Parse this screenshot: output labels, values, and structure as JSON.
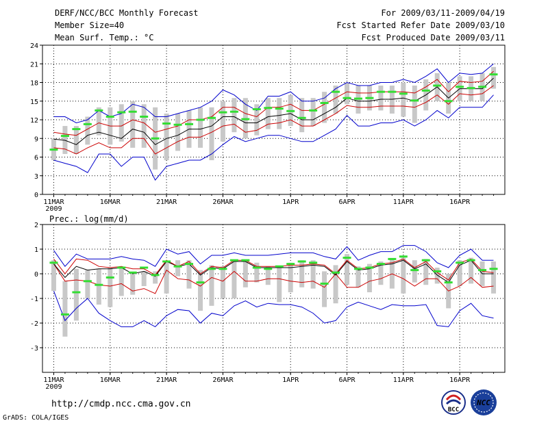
{
  "header": {
    "title": "DERF/NCC/BCC Monthly Forecast",
    "member_size": "Member Size=40",
    "variable": "Mean Surf. Temp.: °C",
    "period": "For 2009/03/11-2009/04/19",
    "refer_date": "Fcst Started Refer Date 2009/03/10",
    "produced_date": "Fcst Produced Date 2009/03/11"
  },
  "footer": {
    "url": "http://cmdp.ncc.cma.gov.cn",
    "grads": "GrADS: COLA/IGES",
    "logo_bcc": "BCC",
    "logo_ncc": "NCC"
  },
  "x_axis": {
    "ticks": [
      {
        "day": 1,
        "label": "11MAR",
        "sub": "2009"
      },
      {
        "day": 6,
        "label": "16MAR",
        "sub": ""
      },
      {
        "day": 11,
        "label": "21MAR",
        "sub": ""
      },
      {
        "day": 16,
        "label": "26MAR",
        "sub": ""
      },
      {
        "day": 22,
        "label": "1APR",
        "sub": ""
      },
      {
        "day": 27,
        "label": "6APR",
        "sub": ""
      },
      {
        "day": 32,
        "label": "11APR",
        "sub": ""
      },
      {
        "day": 37,
        "label": "16APR",
        "sub": ""
      }
    ]
  },
  "colors": {
    "max_min": "#0000cc",
    "spread": "#cc0000",
    "mean": "#000000",
    "box": "#c8c8c8",
    "obs": "#33dd33"
  },
  "chart_data": [
    {
      "type": "line",
      "title": "Mean Surf. Temp.: °C",
      "x": [
        1,
        2,
        3,
        4,
        5,
        6,
        7,
        8,
        9,
        10,
        11,
        12,
        13,
        14,
        15,
        16,
        17,
        18,
        19,
        20,
        21,
        22,
        23,
        24,
        25,
        26,
        27,
        28,
        29,
        30,
        31,
        32,
        33,
        34,
        35,
        36,
        37,
        38,
        39,
        40
      ],
      "xlim": [
        0,
        41
      ],
      "ylim": [
        0,
        24
      ],
      "yticks": [
        0,
        3,
        6,
        9,
        12,
        15,
        18,
        21,
        24
      ],
      "series": [
        {
          "name": "max",
          "values": [
            12.5,
            12.5,
            11.5,
            12,
            13.5,
            12.5,
            13,
            14.5,
            14,
            12.5,
            12.5,
            13,
            13.5,
            14,
            15,
            16.8,
            16,
            14.5,
            13.5,
            15.8,
            15.8,
            16.5,
            15,
            15,
            15.5,
            17,
            18,
            17.5,
            17.5,
            18,
            18,
            18.5,
            18,
            19,
            20.2,
            18,
            19.5,
            19.3,
            19.5,
            21
          ]
        },
        {
          "name": "upper",
          "values": [
            10,
            9.7,
            9.5,
            10.5,
            11.5,
            11,
            11,
            12,
            11.5,
            10,
            10.5,
            11,
            12,
            12,
            12.5,
            14,
            14,
            13,
            12.5,
            14,
            14,
            14.5,
            13.5,
            13.5,
            14.5,
            15.5,
            16.5,
            16.3,
            16.3,
            16.5,
            16.5,
            16.5,
            16.3,
            17.3,
            18.5,
            16.5,
            18.2,
            18,
            18.2,
            19.8
          ]
        },
        {
          "name": "mean",
          "values": [
            8.9,
            8.7,
            8,
            9.5,
            10,
            9.5,
            9,
            10.5,
            10,
            8,
            9,
            9.5,
            10.5,
            10.5,
            11,
            12.5,
            12.5,
            11.5,
            11.5,
            12.5,
            12.7,
            13,
            12,
            12,
            13,
            14,
            15.5,
            15,
            15,
            15.3,
            15.3,
            15.5,
            15,
            16,
            17.3,
            15.5,
            17,
            17,
            17,
            18.7
          ]
        },
        {
          "name": "lower",
          "values": [
            7.5,
            7.3,
            6.5,
            7.5,
            8.3,
            7.5,
            7.5,
            9,
            9,
            6.5,
            7.5,
            8.5,
            9.2,
            9.2,
            10,
            11,
            11.3,
            10,
            10.3,
            11.3,
            11.5,
            12,
            11,
            11,
            12,
            13,
            14.3,
            14,
            14,
            14.2,
            14.2,
            14.2,
            14,
            14.8,
            16,
            14.5,
            16.2,
            16,
            16.2,
            17.5
          ]
        },
        {
          "name": "min",
          "values": [
            5.5,
            5,
            4.5,
            3.5,
            6.5,
            6.5,
            4.5,
            6,
            6,
            2.3,
            4.5,
            5,
            5.5,
            5.5,
            6.5,
            8,
            9.3,
            8.5,
            9,
            9.5,
            9.5,
            9,
            8.5,
            8.5,
            9.5,
            10.5,
            12.7,
            11,
            11,
            11.5,
            11.5,
            12,
            11,
            12,
            13.5,
            12.3,
            14,
            14,
            14,
            16
          ]
        }
      ],
      "boxes": [
        [
          5.5,
          9
        ],
        [
          6.5,
          11
        ],
        [
          6.5,
          11
        ],
        [
          8,
          12.5
        ],
        [
          9.5,
          14
        ],
        [
          8,
          14
        ],
        [
          8.5,
          14.5
        ],
        [
          7.5,
          15
        ],
        [
          7.5,
          14.5
        ],
        [
          4,
          14
        ],
        [
          5.5,
          13
        ],
        [
          7,
          13
        ],
        [
          7.5,
          13.5
        ],
        [
          7.5,
          14
        ],
        [
          5.5,
          14
        ],
        [
          8.5,
          15
        ],
        [
          10,
          15.5
        ],
        [
          9,
          15.5
        ],
        [
          9.5,
          14.5
        ],
        [
          10.5,
          15.5
        ],
        [
          10.5,
          15.5
        ],
        [
          11,
          16
        ],
        [
          10,
          15.5
        ],
        [
          11,
          15.5
        ],
        [
          11.5,
          16.5
        ],
        [
          13,
          17.5
        ],
        [
          14.5,
          18
        ],
        [
          13,
          17.5
        ],
        [
          13.5,
          17.5
        ],
        [
          13.5,
          17.5
        ],
        [
          13,
          17.5
        ],
        [
          12.5,
          18
        ],
        [
          11.5,
          17.5
        ],
        [
          13.5,
          18.5
        ],
        [
          15,
          19.5
        ],
        [
          13,
          18
        ],
        [
          15,
          19
        ],
        [
          15,
          19
        ],
        [
          15,
          19.5
        ],
        [
          17,
          20.5
        ]
      ],
      "observed": [
        7.2,
        9.4,
        10.5,
        11.3,
        13.5,
        12.5,
        13.2,
        13.3,
        12.5,
        9,
        11.4,
        11.2,
        11.3,
        12,
        12.3,
        13.2,
        13.3,
        12.1,
        13.7,
        13.9,
        13.8,
        13.4,
        12.3,
        13.5,
        14.7,
        16.5,
        15.5,
        15.4,
        15.5,
        16.5,
        16.5,
        16.2,
        15.1,
        16.7,
        17.5,
        15,
        17.3,
        17.1,
        17.3,
        19.3
      ]
    },
    {
      "type": "line",
      "title": "Prec.: log(mm/d)",
      "x": [
        1,
        2,
        3,
        4,
        5,
        6,
        7,
        8,
        9,
        10,
        11,
        12,
        13,
        14,
        15,
        16,
        17,
        18,
        19,
        20,
        21,
        22,
        23,
        24,
        25,
        26,
        27,
        28,
        29,
        30,
        31,
        32,
        33,
        34,
        35,
        36,
        37,
        38,
        39,
        40
      ],
      "xlim": [
        0,
        41
      ],
      "ylim": [
        -4,
        2
      ],
      "yticks": [
        -3,
        -2,
        -1,
        0,
        1,
        2
      ],
      "series": [
        {
          "name": "max",
          "values": [
            -0.7,
            -1.9,
            -1.4,
            -1.0,
            -1.6,
            -1.9,
            -2.15,
            -2.15,
            -1.9,
            -2.15,
            -1.7,
            -1.45,
            -1.5,
            -2.0,
            -1.6,
            -1.7,
            -1.3,
            -1.1,
            -1.35,
            -1.2,
            -1.25,
            -1.25,
            -1.35,
            -1.6,
            -2.0,
            -1.9,
            -1.35,
            -1.15,
            -1.3,
            -1.45,
            -1.25,
            -1.3,
            -1.3,
            -1.25,
            -2.1,
            -2.15,
            -1.5,
            -1.2,
            -1.7,
            -1.8
          ]
        },
        {
          "name": "upper",
          "values": [
            0.4,
            -0.3,
            -0.25,
            -0.3,
            -0.45,
            -0.5,
            -0.4,
            -0.7,
            -0.6,
            -0.8,
            0.15,
            -0.2,
            -0.25,
            -0.5,
            -0.15,
            -0.3,
            0.1,
            -0.3,
            -0.3,
            -0.2,
            -0.2,
            -0.3,
            -0.35,
            -0.3,
            -0.55,
            0.0,
            -0.55,
            -0.55,
            -0.3,
            -0.2,
            0.0,
            -0.2,
            -0.5,
            -0.2,
            -0.2,
            -0.7,
            -0.5,
            -0.15,
            -0.55,
            -0.5
          ]
        },
        {
          "name": "mean",
          "values": [
            0.4,
            -0.15,
            0.3,
            0.15,
            0.2,
            0.2,
            0.25,
            0.0,
            0.1,
            -0.1,
            0.5,
            0.3,
            0.4,
            -0.05,
            0.25,
            0.2,
            0.5,
            0.5,
            0.25,
            0.25,
            0.25,
            0.25,
            0.3,
            0.35,
            0.3,
            -0.05,
            0.5,
            0.15,
            0.2,
            0.35,
            0.4,
            0.55,
            0.2,
            0.4,
            -0.05,
            -0.35,
            0.35,
            0.55,
            0.0,
            0.0
          ]
        },
        {
          "name": "lower",
          "values": [
            0.6,
            0.0,
            0.6,
            0.55,
            0.3,
            0.25,
            0.3,
            0.2,
            0.2,
            -0.05,
            0.55,
            0.3,
            0.5,
            0.0,
            0.3,
            0.25,
            0.55,
            0.55,
            0.3,
            0.3,
            0.3,
            0.35,
            0.35,
            0.4,
            0.35,
            0.0,
            0.55,
            0.2,
            0.25,
            0.4,
            0.45,
            0.6,
            0.25,
            0.5,
            0.05,
            -0.25,
            0.45,
            0.6,
            0.1,
            0.05
          ]
        },
        {
          "name": "min",
          "values": [
            0.95,
            0.3,
            0.8,
            0.6,
            0.6,
            0.6,
            0.7,
            0.6,
            0.55,
            0.3,
            1.0,
            0.8,
            0.9,
            0.4,
            0.75,
            0.75,
            0.85,
            0.75,
            0.75,
            0.75,
            0.8,
            0.85,
            0.85,
            0.85,
            0.7,
            0.6,
            1.1,
            0.55,
            0.75,
            0.9,
            0.9,
            1.15,
            1.15,
            0.9,
            0.45,
            0.25,
            0.75,
            1.0,
            0.55,
            0.55
          ]
        }
      ],
      "boxes": [
        [
          -0.7,
          0.55
        ],
        [
          -2.55,
          -0.3
        ],
        [
          -1.9,
          0.2
        ],
        [
          -1.0,
          0.15
        ],
        [
          -1.25,
          0.2
        ],
        [
          -1.35,
          0.25
        ],
        [
          -0.9,
          0.25
        ],
        [
          -0.85,
          0.0
        ],
        [
          -0.5,
          0.1
        ],
        [
          -0.4,
          0.1
        ],
        [
          -0.8,
          0.5
        ],
        [
          -0.1,
          0.55
        ],
        [
          -0.6,
          0.55
        ],
        [
          -1.5,
          0.15
        ],
        [
          -1.3,
          0.35
        ],
        [
          -1.0,
          0.3
        ],
        [
          -1.0,
          0.55
        ],
        [
          -0.55,
          0.55
        ],
        [
          -0.35,
          0.45
        ],
        [
          -0.45,
          0.3
        ],
        [
          -1.15,
          0.25
        ],
        [
          -0.75,
          0.45
        ],
        [
          -0.55,
          0.55
        ],
        [
          -0.6,
          0.55
        ],
        [
          -1.35,
          0.1
        ],
        [
          -1.2,
          0.35
        ],
        [
          -0.45,
          0.8
        ],
        [
          -0.55,
          0.3
        ],
        [
          -0.75,
          0.4
        ],
        [
          -0.45,
          0.5
        ],
        [
          -0.6,
          0.6
        ],
        [
          -0.8,
          0.65
        ],
        [
          -0.35,
          0.55
        ],
        [
          -0.45,
          0.6
        ],
        [
          -0.4,
          0.25
        ],
        [
          -1.4,
          0.0
        ],
        [
          -0.5,
          0.55
        ],
        [
          -0.4,
          0.65
        ],
        [
          -0.5,
          0.5
        ],
        [
          -0.8,
          0.5
        ]
      ],
      "observed": [
        0.45,
        -1.65,
        -0.75,
        -0.3,
        -0.45,
        -0.15,
        0.25,
        0.05,
        0.25,
        -0.05,
        0.5,
        0.3,
        0.4,
        -0.35,
        0.2,
        0.2,
        0.55,
        0.55,
        0.25,
        0.2,
        0.3,
        0.4,
        0.5,
        0.45,
        -0.4,
        0.05,
        0.65,
        0.2,
        0.25,
        0.4,
        0.6,
        0.7,
        0.15,
        0.55,
        0.1,
        -0.35,
        0.45,
        0.55,
        0.15,
        0.2
      ]
    }
  ]
}
